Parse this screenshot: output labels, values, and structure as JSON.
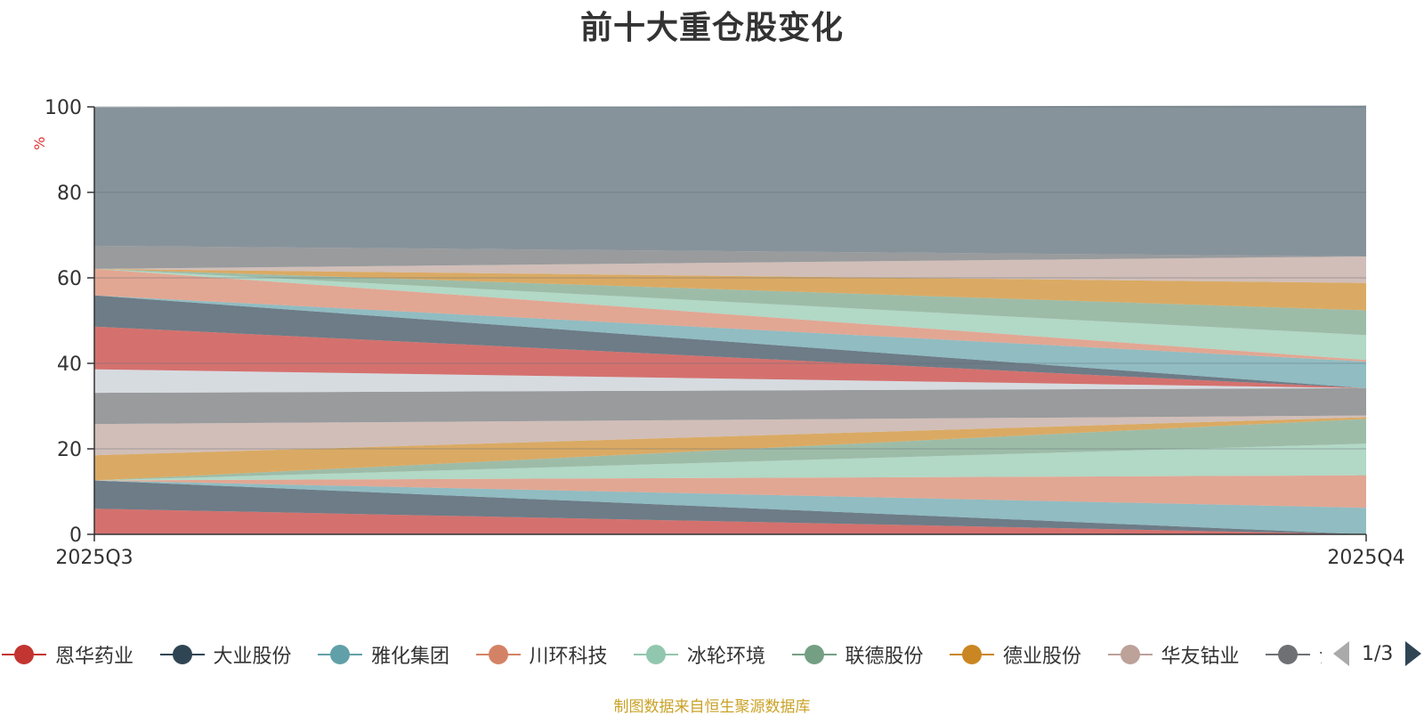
{
  "title": "前十大重仓股变化",
  "source_note": "制图数据来自恒生聚源数据库",
  "legend": {
    "items": [
      {
        "label": "恩华药业",
        "color": "#c23531"
      },
      {
        "label": "大业股份",
        "color": "#2f4554"
      },
      {
        "label": "雅化集团",
        "color": "#61a0a8"
      },
      {
        "label": "川环科技",
        "color": "#d48265"
      },
      {
        "label": "冰轮环境",
        "color": "#91c7ae"
      },
      {
        "label": "联德股份",
        "color": "#749f83"
      },
      {
        "label": "德业股份",
        "color": "#ca8622"
      },
      {
        "label": "华友钴业",
        "color": "#bda29a"
      },
      {
        "label": "氵",
        "color": "#6e7074"
      }
    ],
    "pager": "1/3"
  },
  "chart_data": {
    "type": "area",
    "title": "前十大重仓股变化",
    "ylabel": "%",
    "x": [
      "2025Q3",
      "2025Q4"
    ],
    "ylim": [
      0,
      100
    ],
    "yticks": [
      0,
      20,
      40,
      60,
      80,
      100
    ],
    "grid": true,
    "stacked": true,
    "series": [
      {
        "name": "恩华药业",
        "color": "#c23531",
        "values": [
          6.0,
          0.0
        ]
      },
      {
        "name": "大业股份",
        "color": "#2f4554",
        "values": [
          6.6,
          0.0
        ]
      },
      {
        "name": "雅化集团",
        "color": "#61a0a8",
        "values": [
          0.0,
          6.2
        ]
      },
      {
        "name": "川环科技",
        "color": "#d48265",
        "values": [
          0.0,
          7.6
        ]
      },
      {
        "name": "冰轮环境",
        "color": "#91c7ae",
        "values": [
          0.0,
          7.4
        ]
      },
      {
        "name": "联德股份",
        "color": "#749f83",
        "values": [
          0.0,
          5.8
        ]
      },
      {
        "name": "德业股份",
        "color": "#ca8622",
        "values": [
          5.9,
          0.4
        ]
      },
      {
        "name": "华友钴业",
        "color": "#bda29a",
        "values": [
          7.3,
          0.4
        ]
      },
      {
        "color": "#6e7074",
        "values": [
          7.3,
          6.4
        ]
      },
      {
        "color": "#546570",
        "values": [
          0.0,
          0.0
        ]
      },
      {
        "color": "#c4ccd3",
        "values": [
          5.5,
          0.0
        ]
      },
      {
        "color": "#c23531",
        "values": [
          10.0,
          0.0
        ]
      },
      {
        "color": "#2f4554",
        "values": [
          7.3,
          0.0
        ]
      },
      {
        "color": "#61a0a8",
        "values": [
          0.0,
          6.2
        ]
      },
      {
        "color": "#d48265",
        "values": [
          6.2,
          0.4
        ]
      },
      {
        "color": "#91c7ae",
        "values": [
          0.0,
          5.8
        ]
      },
      {
        "color": "#749f83",
        "values": [
          0.0,
          5.8
        ]
      },
      {
        "color": "#ca8622",
        "values": [
          0.0,
          6.4
        ]
      },
      {
        "color": "#bda29a",
        "values": [
          0.0,
          6.2
        ]
      },
      {
        "color": "#6e7074",
        "values": [
          5.4,
          0.0
        ]
      },
      {
        "color": "#546570",
        "values": [
          32.4,
          35.3
        ]
      }
    ]
  }
}
